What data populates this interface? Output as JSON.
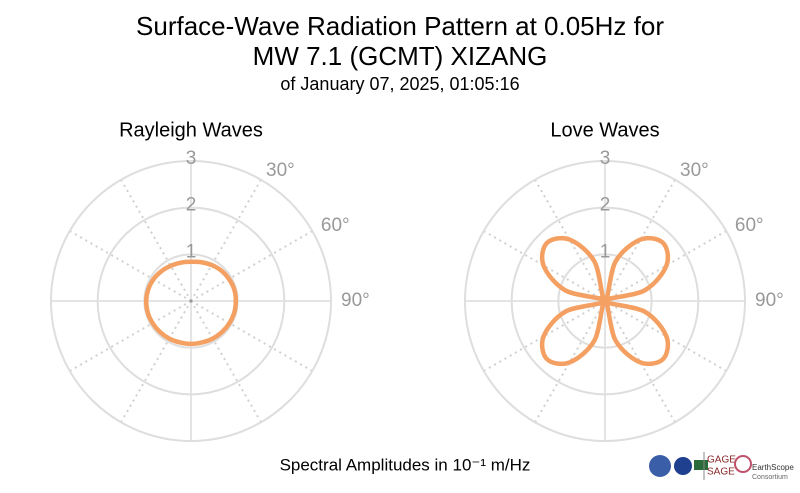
{
  "header": {
    "title_lines": [
      "Surface-Wave Radiation Pattern at 0.05Hz for",
      "MW 7.1 (GCMT) XIZANG"
    ],
    "subtitle": "of January 07, 2025, 01:05:16"
  },
  "caption": "Spectral Amplitudes in 10⁻¹ m/Hz",
  "logos": {
    "gage": "GAGE",
    "sage": "SAGE",
    "earthscope": "EarthScope",
    "consortium": "Consortium"
  },
  "chart_data": [
    {
      "type": "polar",
      "title": "Rayleigh Waves",
      "color": "#f4a063",
      "theta": [
        0,
        15,
        30,
        45,
        60,
        75,
        90,
        105,
        120,
        135,
        150,
        165,
        180,
        195,
        210,
        225,
        240,
        255,
        270,
        285,
        300,
        315,
        330,
        345
      ],
      "values": [
        0.84,
        0.86,
        0.89,
        0.92,
        0.94,
        0.96,
        0.96,
        0.96,
        0.95,
        0.94,
        0.93,
        0.92,
        0.92,
        0.92,
        0.93,
        0.94,
        0.95,
        0.96,
        0.96,
        0.95,
        0.93,
        0.9,
        0.87,
        0.85
      ],
      "rlim": [
        0,
        3
      ],
      "rticks": [
        1,
        2,
        3
      ],
      "thetagrid": [
        0,
        30,
        60,
        90,
        120,
        150,
        180,
        210,
        240,
        270,
        300,
        330
      ],
      "thetaticks": [
        {
          "value": 30,
          "label": "30°"
        },
        {
          "value": 60,
          "label": "60°"
        },
        {
          "value": 90,
          "label": "90°"
        }
      ]
    },
    {
      "type": "polar",
      "title": "Love Waves",
      "color": "#f4a063",
      "theta": [
        0,
        15,
        30,
        45,
        60,
        75,
        90,
        105,
        120,
        135,
        150,
        165,
        180,
        195,
        210,
        225,
        240,
        255,
        270,
        285,
        300,
        315,
        330,
        345
      ],
      "values": [
        0,
        0.88,
        1.52,
        1.76,
        1.52,
        0.88,
        0,
        0.88,
        1.52,
        1.76,
        1.52,
        0.88,
        0,
        0.88,
        1.52,
        1.76,
        1.52,
        0.88,
        0,
        0.88,
        1.52,
        1.76,
        1.52,
        0.88
      ],
      "rlim": [
        0,
        3
      ],
      "rticks": [
        1,
        2,
        3
      ],
      "thetagrid": [
        0,
        30,
        60,
        90,
        120,
        150,
        180,
        210,
        240,
        270,
        300,
        330
      ],
      "thetaticks": [
        {
          "value": 30,
          "label": "30°"
        },
        {
          "value": 60,
          "label": "60°"
        },
        {
          "value": 90,
          "label": "90°"
        }
      ]
    }
  ]
}
